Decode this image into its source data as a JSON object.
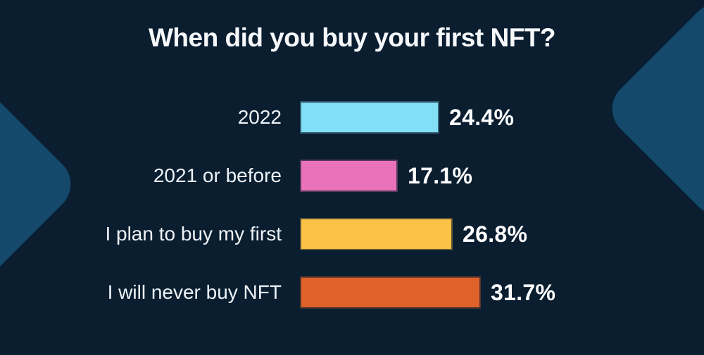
{
  "page": {
    "background_color": "#0a1e30",
    "accent_shape_color": "#14496c",
    "text_color": "#f6f8fa"
  },
  "chart_data": {
    "type": "bar",
    "orientation": "horizontal",
    "title": "When did you buy your first NFT?",
    "categories": [
      "2022",
      "2021 or before",
      "I plan to buy my first",
      "I will never buy NFT"
    ],
    "values": [
      24.4,
      17.1,
      26.8,
      31.7
    ],
    "value_labels": [
      "24.4%",
      "17.1%",
      "26.8%",
      "31.7%"
    ],
    "bar_colors": [
      "#82dff5",
      "#e973ba",
      "#fbc246",
      "#e0612a"
    ],
    "xlim": [
      0,
      35
    ],
    "grid": false,
    "legend": false,
    "category_label_position": "left-of-bar",
    "value_label_position": "right-of-bar"
  }
}
